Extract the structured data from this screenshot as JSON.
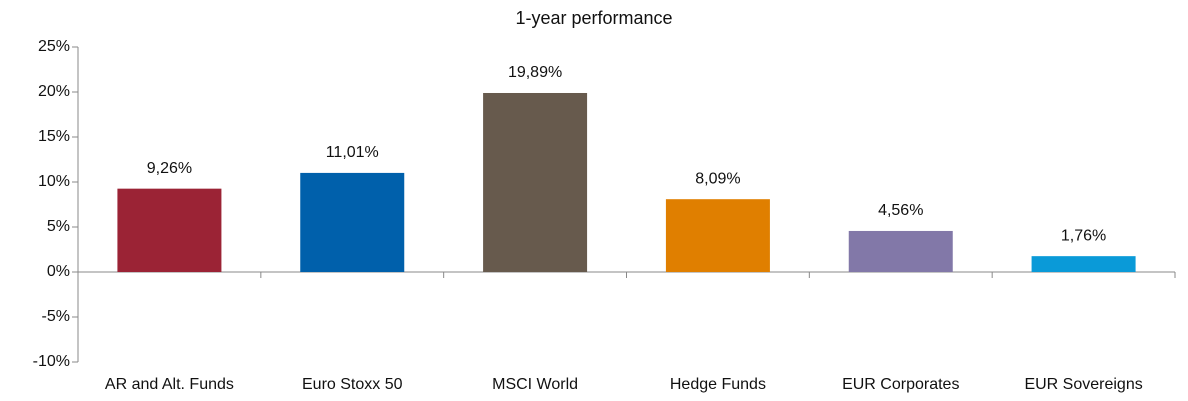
{
  "chart_data": {
    "type": "bar",
    "title": "1-year performance",
    "categories": [
      "AR and Alt. Funds",
      "Euro Stoxx 50",
      "MSCI World",
      "Hedge Funds",
      "EUR Corporates",
      "EUR Sovereigns"
    ],
    "values": [
      9.26,
      11.01,
      19.89,
      8.09,
      4.56,
      1.76
    ],
    "value_labels": [
      "9,26%",
      "11,01%",
      "19,89%",
      "8,09%",
      "4,56%",
      "1,76%"
    ],
    "colors": [
      "#9b2335",
      "#0060ab",
      "#675a4d",
      "#e07f00",
      "#8278a8",
      "#0a9ad8"
    ],
    "ylim": [
      -10,
      25
    ],
    "yticks": [
      {
        "value": -10,
        "label": "-10%"
      },
      {
        "value": -5,
        "label": "-5%"
      },
      {
        "value": 0,
        "label": "0%"
      },
      {
        "value": 5,
        "label": "5%"
      },
      {
        "value": 10,
        "label": "10%"
      },
      {
        "value": 15,
        "label": "15%"
      },
      {
        "value": 20,
        "label": "20%"
      },
      {
        "value": 25,
        "label": "25%"
      }
    ],
    "grid": false
  }
}
